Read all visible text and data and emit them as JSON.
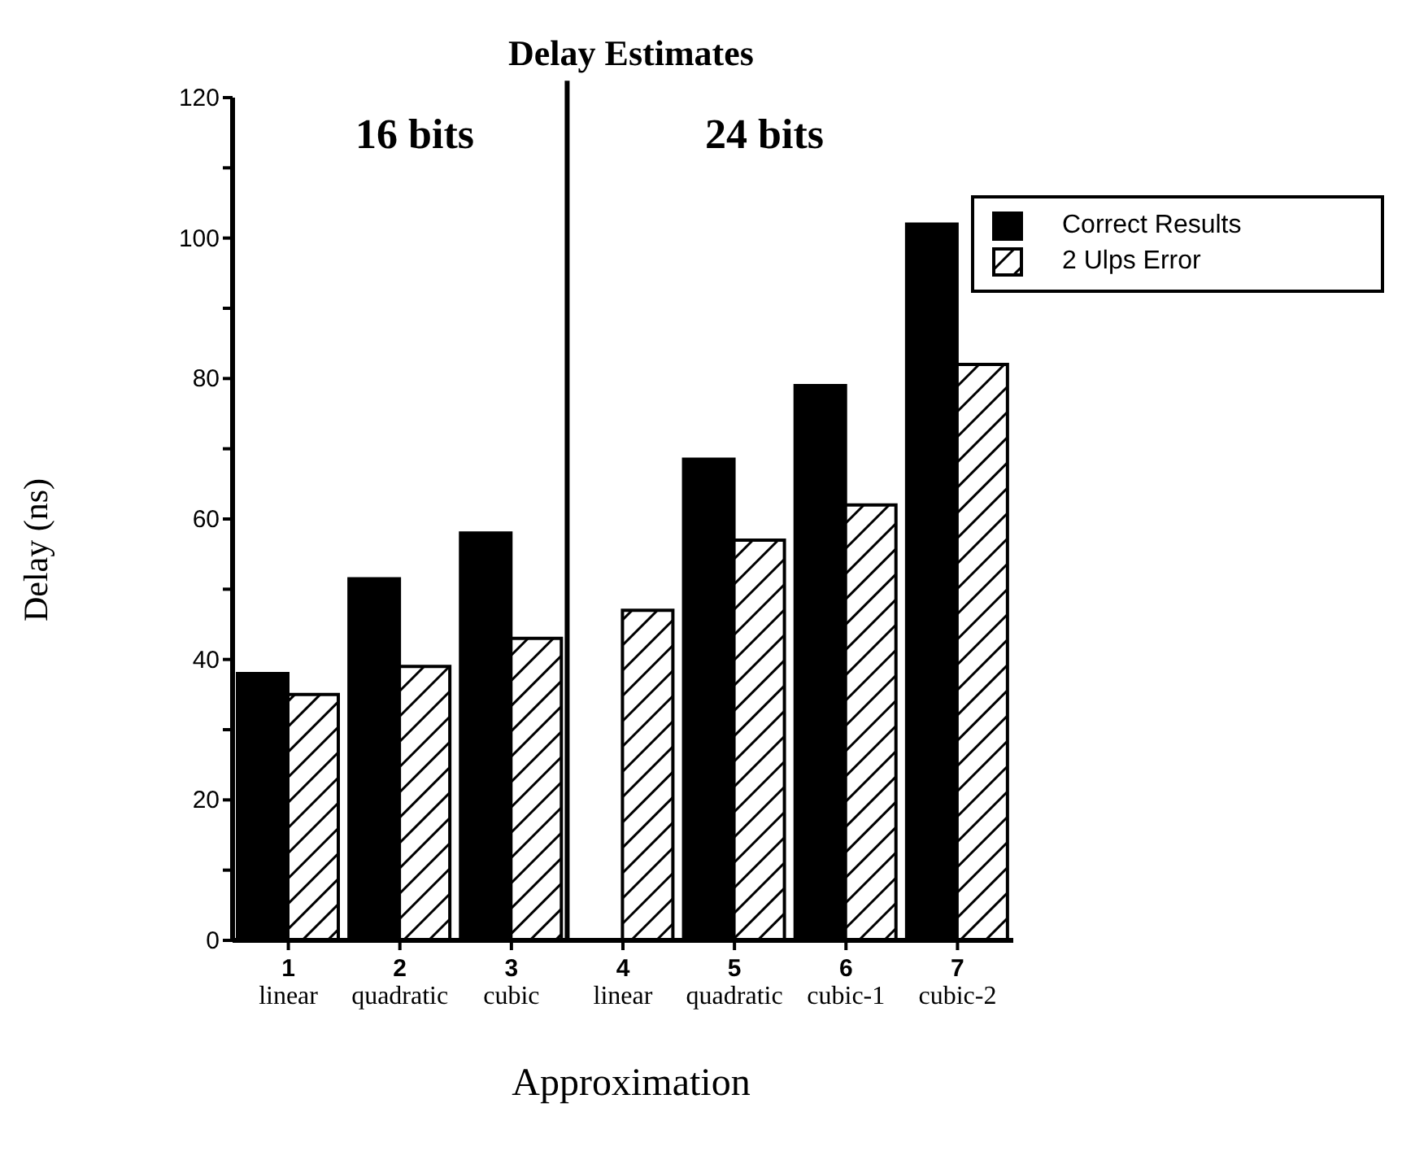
{
  "chart_data": {
    "type": "bar",
    "title": "Delay Estimates",
    "xlabel": "Approximation",
    "ylabel": "Delay (ns)",
    "categories": [
      "1\nlinear",
      "2\nquadratic",
      "3\ncubic",
      "4\nlinear",
      "5\nquadratic",
      "6\ncubic-1",
      "7\ncubic-2"
    ],
    "series": [
      {
        "name": "Correct Results",
        "color": "#000000",
        "values": [
          38,
          51.5,
          58,
          null,
          68.5,
          79,
          102
        ]
      },
      {
        "name": "2  Ulps Error",
        "color": "#000000",
        "values": [
          35,
          39,
          43,
          47,
          57,
          62,
          82
        ]
      }
    ],
    "ylim": [
      0,
      120
    ],
    "yticks": [
      0,
      {
        "value": 10,
        "label": null
      },
      20,
      {
        "value": 30,
        "label": null
      },
      40,
      {
        "value": 50,
        "label": null
      },
      60,
      {
        "value": 70,
        "label": null
      },
      80,
      {
        "value": 90,
        "label": null
      },
      100,
      {
        "value": 110,
        "label": null
      },
      120
    ],
    "annotations": [
      "16 bits",
      "24 bits"
    ],
    "legend": "top right",
    "grid": false
  }
}
